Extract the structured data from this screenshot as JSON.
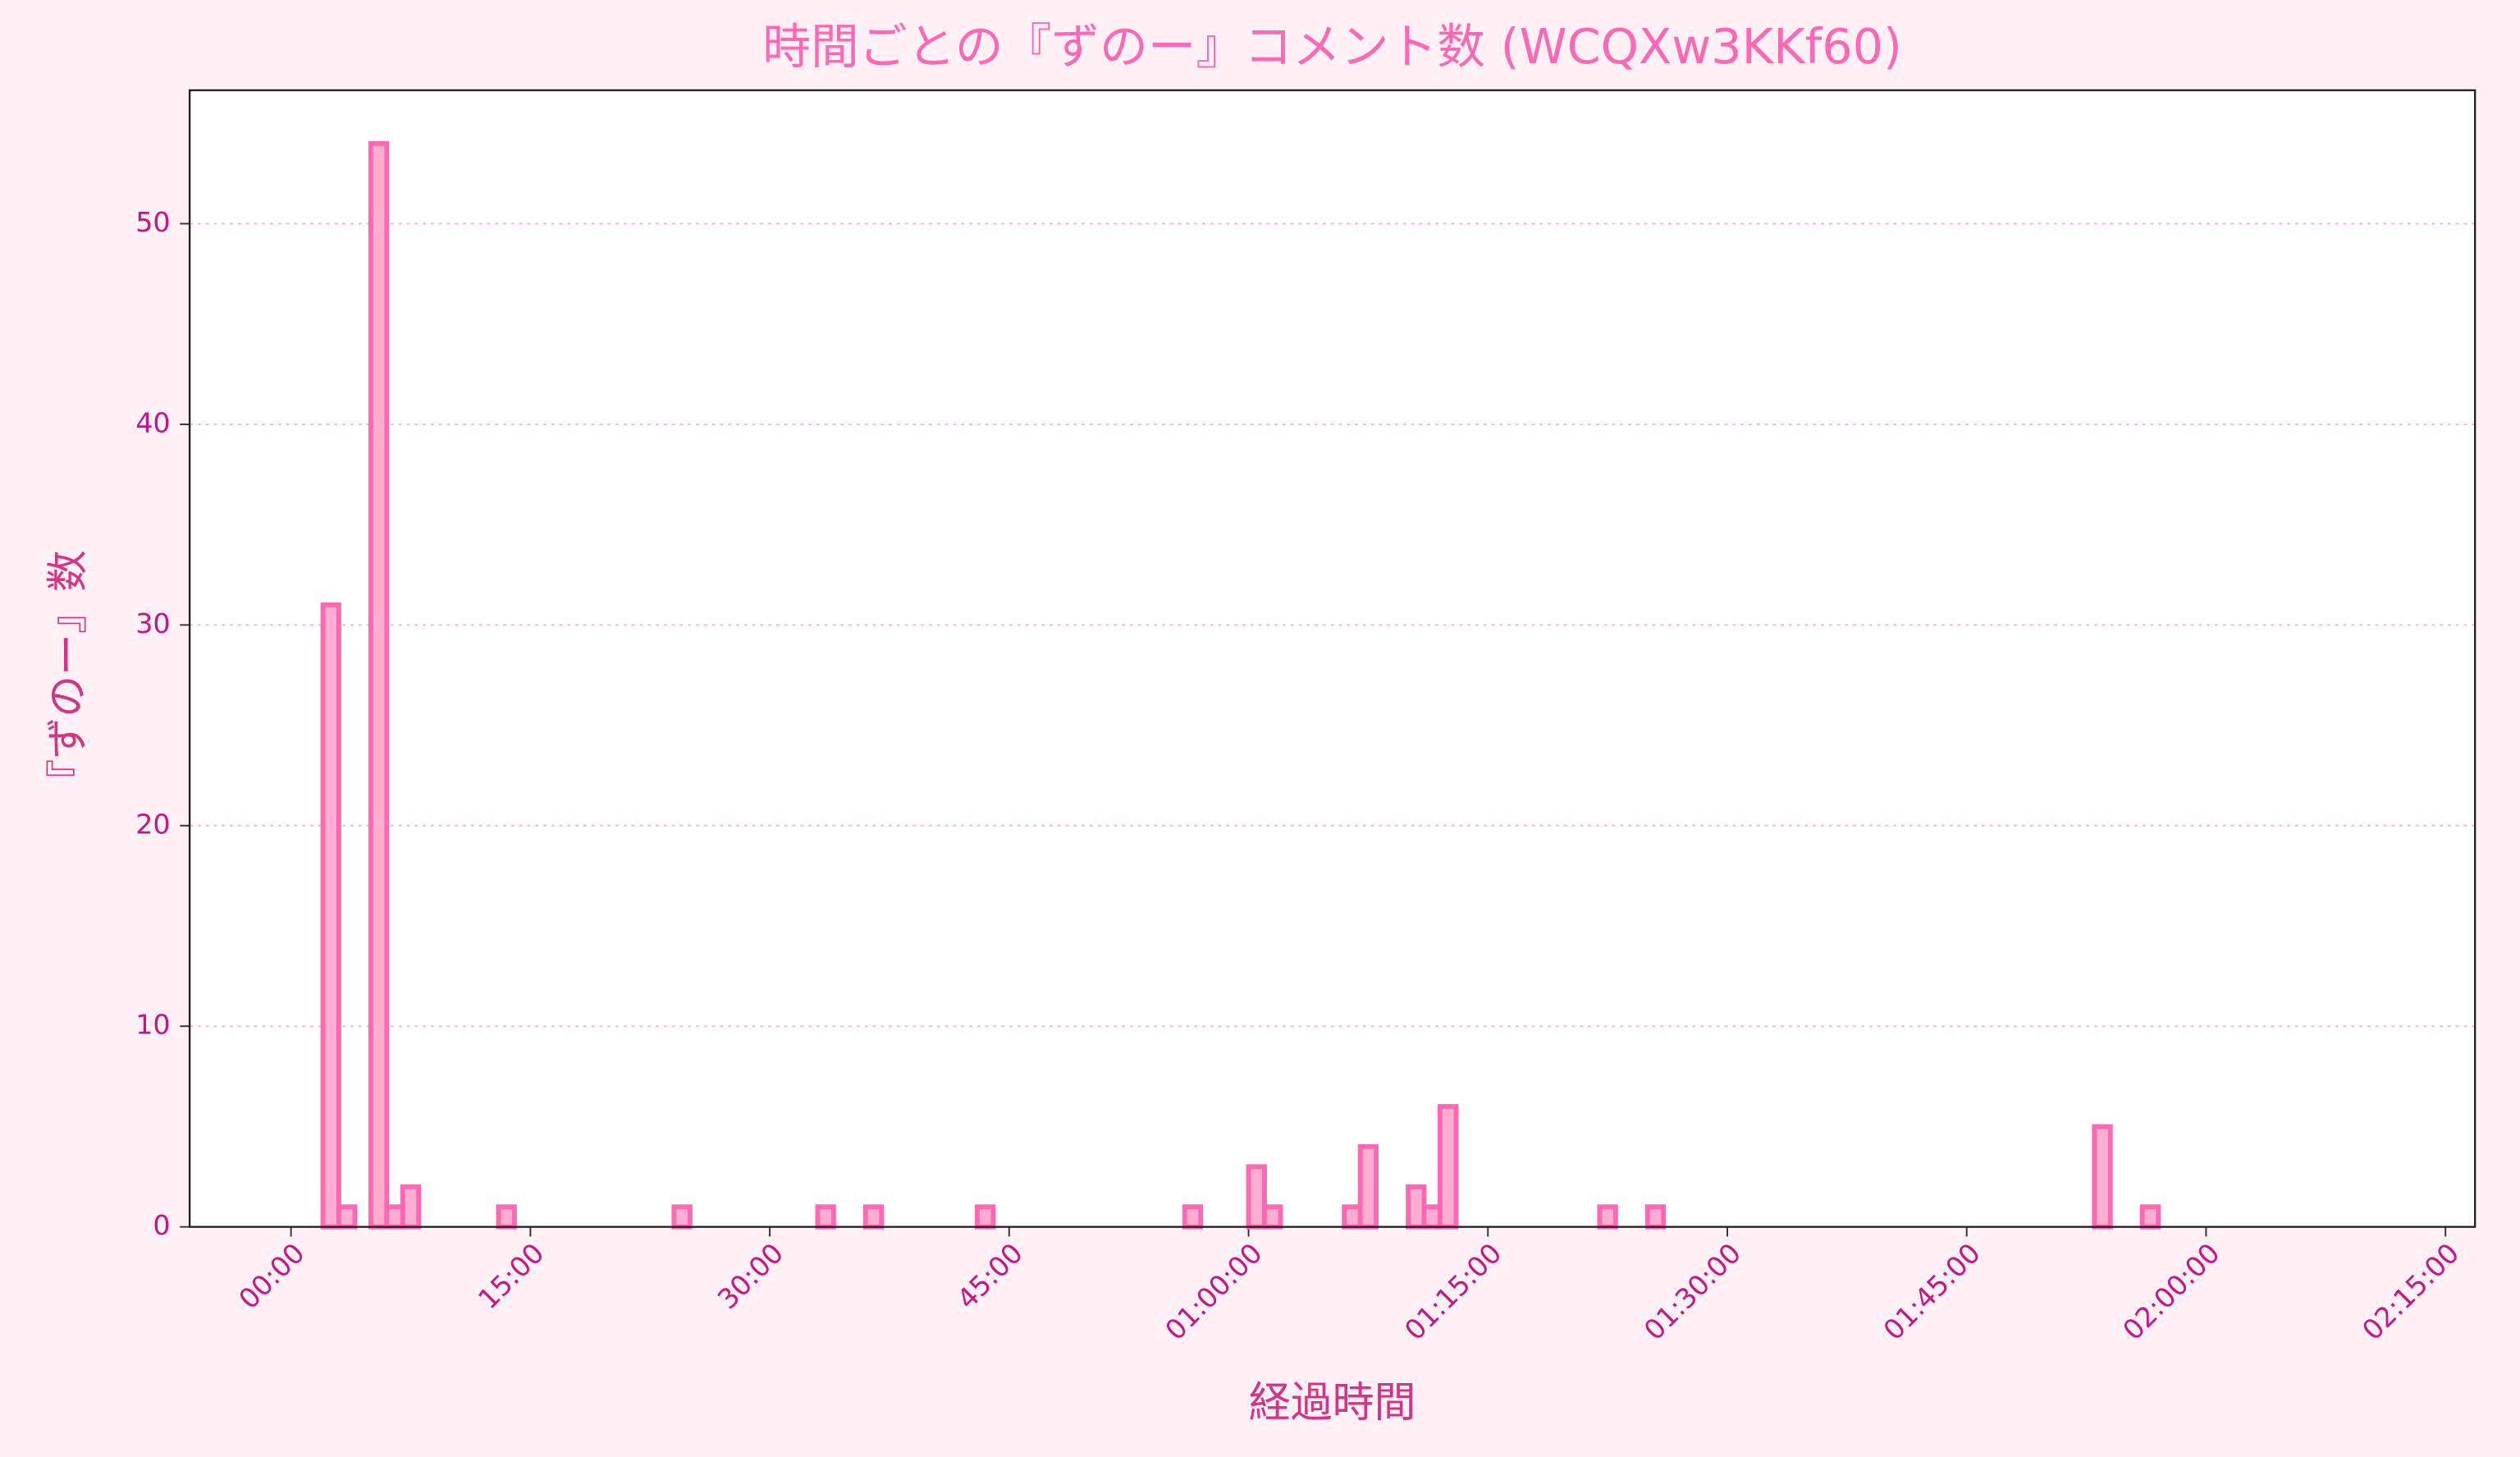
{
  "chart_data": {
    "type": "histogram",
    "title": "時間ごとの『ずのー』コメント数 (WCQXw3KKf60)",
    "xlabel": "経過時間",
    "ylabel": "『ずのー』数",
    "bins": [
      0,
      1,
      2,
      3,
      4,
      5,
      6,
      7,
      8,
      9,
      10,
      11,
      12,
      13,
      14,
      15,
      16,
      17,
      18,
      19,
      20,
      21,
      22,
      23,
      24,
      25,
      26,
      27,
      28,
      29,
      30,
      31,
      32,
      33,
      34,
      35,
      36,
      37,
      38,
      39,
      40,
      41,
      42,
      43,
      44,
      45,
      46,
      47,
      48,
      49,
      50,
      51,
      52,
      53,
      54,
      55,
      56,
      57,
      58,
      59,
      60,
      61,
      62,
      63,
      64,
      65,
      66,
      67,
      68,
      69,
      70,
      71,
      72,
      73,
      74,
      75,
      76,
      77,
      78,
      79,
      80,
      81,
      82,
      83,
      84,
      85,
      86,
      87,
      88,
      89,
      90,
      91,
      92,
      93,
      94,
      95,
      96,
      97,
      98,
      99,
      100,
      101,
      102,
      103,
      104,
      105,
      106,
      107,
      108,
      109,
      110,
      111,
      112,
      113,
      114,
      115,
      116,
      117,
      118,
      119,
      120,
      121,
      122,
      123,
      124,
      125,
      126,
      127,
      128,
      129,
      130,
      131
    ],
    "values": [
      0,
      0,
      31,
      1,
      0,
      54,
      1,
      2,
      0,
      0,
      0,
      0,
      0,
      1,
      0,
      0,
      0,
      0,
      0,
      0,
      0,
      0,
      0,
      0,
      1,
      0,
      0,
      0,
      0,
      0,
      0,
      0,
      0,
      1,
      0,
      0,
      1,
      0,
      0,
      0,
      0,
      0,
      0,
      1,
      0,
      0,
      0,
      0,
      0,
      0,
      0,
      0,
      0,
      0,
      0,
      0,
      1,
      0,
      0,
      0,
      3,
      1,
      0,
      0,
      0,
      0,
      1,
      4,
      0,
      0,
      2,
      1,
      6,
      0,
      0,
      0,
      0,
      0,
      0,
      0,
      0,
      0,
      1,
      0,
      0,
      1,
      0,
      0,
      0,
      0,
      0,
      0,
      0,
      0,
      0,
      0,
      0,
      0,
      0,
      0,
      0,
      0,
      0,
      0,
      0,
      0,
      0,
      0,
      0,
      0,
      0,
      0,
      0,
      5,
      0,
      0,
      1,
      0,
      0,
      0,
      0,
      0,
      0,
      0,
      0,
      0,
      0,
      0,
      0,
      0,
      0
    ],
    "color": "#ffadd0",
    "edgecolor": "#ff69b4",
    "xlim": [
      -6.35,
      136.85
    ],
    "xticks": [
      {
        "value": 0,
        "label": "00:00"
      },
      {
        "value": 15,
        "label": "15:00"
      },
      {
        "value": 30,
        "label": "30:00"
      },
      {
        "value": 45,
        "label": "45:00"
      },
      {
        "value": 60,
        "label": "01:00:00"
      },
      {
        "value": 75,
        "label": "01:15:00"
      },
      {
        "value": 90,
        "label": "01:30:00"
      },
      {
        "value": 105,
        "label": "01:45:00"
      },
      {
        "value": 120,
        "label": "02:00:00"
      },
      {
        "value": 135,
        "label": "02:15:00"
      }
    ],
    "ylim": [
      0,
      56.65
    ],
    "yticks": [
      0,
      10,
      20,
      30,
      40,
      50
    ],
    "grid": true
  }
}
